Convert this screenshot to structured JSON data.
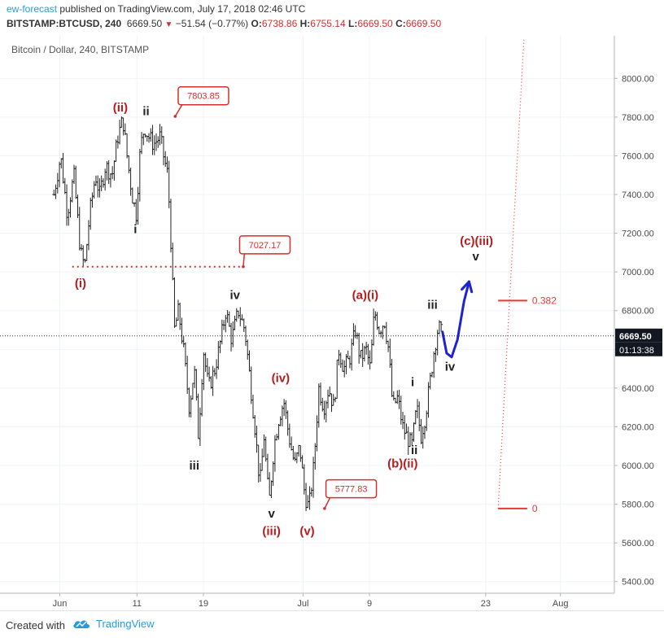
{
  "header": {
    "author": "ew-forecast",
    "published_text": "published on TradingView.com, July 17, 2018 02:46 UTC",
    "symbol": "BITSTAMP:BTCUSD, 240",
    "last": "6669.50",
    "change": "−51.54 (−0.77%)",
    "o_label": "O:",
    "o_value": "6738.86",
    "h_label": "H:",
    "h_value": "6755.14",
    "l_label": "L:",
    "l_value": "6669.50",
    "c_label": "C:",
    "c_value": "6669.50"
  },
  "footer": {
    "created_with": "Created with",
    "brand": "TradingView"
  },
  "chart_data": {
    "type": "candlestick-ohlc",
    "title": "Bitcoin / Dollar, 240, BITSTAMP",
    "ylim": [
      5400,
      8200
    ],
    "y_ticks": [
      5400,
      5600,
      5800,
      6000,
      6200,
      6400,
      6600,
      6800,
      7000,
      7200,
      7400,
      7600,
      7800,
      8000
    ],
    "x_ticks": [
      {
        "label": "Jun",
        "x": 0.7
      },
      {
        "label": "11",
        "x": 10.0
      },
      {
        "label": "19",
        "x": 18.0
      },
      {
        "label": "Jul",
        "x": 30.0
      },
      {
        "label": "9",
        "x": 38.0
      },
      {
        "label": "23",
        "x": 52.0
      },
      {
        "label": "Aug",
        "x": 61.0
      }
    ],
    "last_price": 6669.5,
    "countdown": "01:13:38",
    "price_path": [
      {
        "x": 0.0,
        "y": 7400
      },
      {
        "x": 0.8,
        "y": 7600
      },
      {
        "x": 1.6,
        "y": 7300
      },
      {
        "x": 2.4,
        "y": 7500
      },
      {
        "x": 3.2,
        "y": 7100
      },
      {
        "x": 3.7,
        "y": 7027
      },
      {
        "x": 4.3,
        "y": 7300
      },
      {
        "x": 5.0,
        "y": 7500
      },
      {
        "x": 5.5,
        "y": 7400
      },
      {
        "x": 6.2,
        "y": 7550
      },
      {
        "x": 7.0,
        "y": 7500
      },
      {
        "x": 7.7,
        "y": 7700
      },
      {
        "x": 8.3,
        "y": 7790
      },
      {
        "x": 8.8,
        "y": 7600
      },
      {
        "x": 9.4,
        "y": 7400
      },
      {
        "x": 9.9,
        "y": 7300
      },
      {
        "x": 10.4,
        "y": 7640
      },
      {
        "x": 10.9,
        "y": 7750
      },
      {
        "x": 11.4,
        "y": 7700
      },
      {
        "x": 12.0,
        "y": 7660
      },
      {
        "x": 12.8,
        "y": 7700
      },
      {
        "x": 13.2,
        "y": 7600
      },
      {
        "x": 13.7,
        "y": 7500
      },
      {
        "x": 14.0,
        "y": 7250
      },
      {
        "x": 14.5,
        "y": 6700
      },
      {
        "x": 15.0,
        "y": 6800
      },
      {
        "x": 15.6,
        "y": 6600
      },
      {
        "x": 16.3,
        "y": 6300
      },
      {
        "x": 16.9,
        "y": 6500
      },
      {
        "x": 17.4,
        "y": 6150
      },
      {
        "x": 18.0,
        "y": 6600
      },
      {
        "x": 18.6,
        "y": 6400
      },
      {
        "x": 19.4,
        "y": 6500
      },
      {
        "x": 20.1,
        "y": 6650
      },
      {
        "x": 20.7,
        "y": 6800
      },
      {
        "x": 21.4,
        "y": 6650
      },
      {
        "x": 22.2,
        "y": 6800
      },
      {
        "x": 23.0,
        "y": 6700
      },
      {
        "x": 23.6,
        "y": 6450
      },
      {
        "x": 24.2,
        "y": 6200
      },
      {
        "x": 24.8,
        "y": 5900
      },
      {
        "x": 25.3,
        "y": 6150
      },
      {
        "x": 25.9,
        "y": 5800
      },
      {
        "x": 26.5,
        "y": 6100
      },
      {
        "x": 27.1,
        "y": 6250
      },
      {
        "x": 27.7,
        "y": 6330
      },
      {
        "x": 28.3,
        "y": 6150
      },
      {
        "x": 29.0,
        "y": 6000
      },
      {
        "x": 29.6,
        "y": 6100
      },
      {
        "x": 30.2,
        "y": 5850
      },
      {
        "x": 30.7,
        "y": 5778
      },
      {
        "x": 31.3,
        "y": 6000
      },
      {
        "x": 31.9,
        "y": 6400
      },
      {
        "x": 32.5,
        "y": 6300
      },
      {
        "x": 33.1,
        "y": 6400
      },
      {
        "x": 33.7,
        "y": 6300
      },
      {
        "x": 34.3,
        "y": 6600
      },
      {
        "x": 34.9,
        "y": 6500
      },
      {
        "x": 35.6,
        "y": 6550
      },
      {
        "x": 36.3,
        "y": 6700
      },
      {
        "x": 36.9,
        "y": 6550
      },
      {
        "x": 37.6,
        "y": 6600
      },
      {
        "x": 38.1,
        "y": 6500
      },
      {
        "x": 38.6,
        "y": 6800
      },
      {
        "x": 39.2,
        "y": 6700
      },
      {
        "x": 39.8,
        "y": 6750
      },
      {
        "x": 40.3,
        "y": 6600
      },
      {
        "x": 40.8,
        "y": 6300
      },
      {
        "x": 41.4,
        "y": 6350
      },
      {
        "x": 42.0,
        "y": 6200
      },
      {
        "x": 42.5,
        "y": 6150
      },
      {
        "x": 43.1,
        "y": 6100
      },
      {
        "x": 43.7,
        "y": 6300
      },
      {
        "x": 44.2,
        "y": 6150
      },
      {
        "x": 44.7,
        "y": 6250
      },
      {
        "x": 45.2,
        "y": 6400
      },
      {
        "x": 45.8,
        "y": 6600
      },
      {
        "x": 46.3,
        "y": 6720
      },
      {
        "x": 46.8,
        "y": 6670
      }
    ],
    "wave_labels": [
      {
        "text": "(ii)",
        "x": 8.0,
        "y": 7830,
        "color": "#b71c1c"
      },
      {
        "text": "ii",
        "x": 11.1,
        "y": 7810,
        "color": "#222222"
      },
      {
        "text": "i",
        "x": 9.8,
        "y": 7200,
        "color": "#222222"
      },
      {
        "text": "(i)",
        "x": 3.2,
        "y": 6920,
        "color": "#b71c1c"
      },
      {
        "text": "iii",
        "x": 16.9,
        "y": 5980,
        "color": "#222222"
      },
      {
        "text": "iv",
        "x": 21.8,
        "y": 6860,
        "color": "#222222"
      },
      {
        "text": "(iv)",
        "x": 27.3,
        "y": 6430,
        "color": "#b71c1c"
      },
      {
        "text": "v",
        "x": 26.2,
        "y": 5730,
        "color": "#222222"
      },
      {
        "text": "(iii)",
        "x": 26.2,
        "y": 5640,
        "color": "#b71c1c"
      },
      {
        "text": "(v)",
        "x": 30.5,
        "y": 5640,
        "color": "#b71c1c"
      },
      {
        "text": "(a)(i)",
        "x": 37.5,
        "y": 6860,
        "color": "#b71c1c"
      },
      {
        "text": "iii",
        "x": 45.6,
        "y": 6810,
        "color": "#222222"
      },
      {
        "text": "i",
        "x": 43.2,
        "y": 6410,
        "color": "#222222"
      },
      {
        "text": "ii",
        "x": 43.4,
        "y": 6060,
        "color": "#222222"
      },
      {
        "text": "(b)(ii)",
        "x": 42.0,
        "y": 5990,
        "color": "#b71c1c"
      },
      {
        "text": "iv",
        "x": 47.7,
        "y": 6490,
        "color": "#222222"
      },
      {
        "text": "(c)(iii)",
        "x": 50.9,
        "y": 7140,
        "color": "#b71c1c"
      },
      {
        "text": "v",
        "x": 50.8,
        "y": 7060,
        "color": "#222222"
      }
    ],
    "price_callouts": [
      {
        "text": "7803.85",
        "anchor_x": 14.6,
        "anchor_y": 7803.85,
        "label_x": 18.0,
        "label_y": 7910
      },
      {
        "text": "7027.17",
        "anchor_x": 22.8,
        "anchor_y": 7027.17,
        "label_x": 25.4,
        "label_y": 7140
      },
      {
        "text": "5777.83",
        "anchor_x": 32.6,
        "anchor_y": 5777.83,
        "label_x": 35.8,
        "label_y": 5880
      }
    ],
    "level_line": {
      "y": 7027.17,
      "x_start": 2.2,
      "x_end": 22.8
    },
    "fib_levels": [
      {
        "label": "0.382",
        "y": 6852,
        "x_start": 53.5,
        "x_end": 57.0
      },
      {
        "label": "0",
        "y": 5778,
        "x_start": 53.5,
        "x_end": 57.0
      }
    ],
    "fib_trend": {
      "x1": 53.5,
      "y1": 5778,
      "x2": 56.6,
      "y2": 8200
    },
    "projection_arrow": [
      {
        "x": 46.8,
        "y": 6690
      },
      {
        "x": 47.3,
        "y": 6580
      },
      {
        "x": 47.9,
        "y": 6560
      },
      {
        "x": 48.6,
        "y": 6650
      },
      {
        "x": 49.4,
        "y": 6850
      },
      {
        "x": 50.0,
        "y": 6950
      }
    ],
    "colors": {
      "candle": "#222222",
      "wave_red": "#b71c1c",
      "callout": "#d32f2f",
      "fib": "#e53935",
      "projection": "#1e22d2",
      "grid": "#f0f3fa",
      "axis_text": "#4a4a4a",
      "price_label_bg": "#131722"
    }
  }
}
